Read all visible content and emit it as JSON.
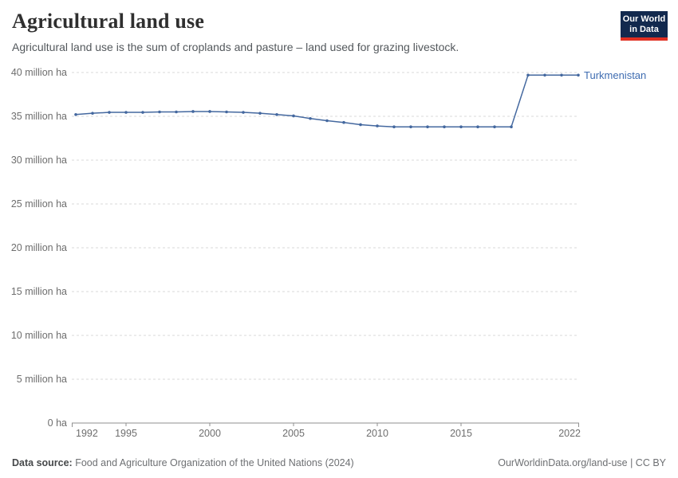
{
  "header": {
    "title": "Agricultural land use",
    "subtitle": "Agricultural land use is the sum of croplands and pasture – land used for grazing livestock.",
    "logo": {
      "line1": "Our World",
      "line2": "in Data"
    }
  },
  "footer": {
    "source_label": "Data source:",
    "source_text": " Food and Agriculture Organization of the United Nations (2024)",
    "right_text": "OurWorldinData.org/land-use | CC BY"
  },
  "colors": {
    "line": "#44689f",
    "series_label": "#3e6cb1",
    "grid": "#dadada",
    "axis": "#8f8f8f",
    "tick_text": "#6e6e6e",
    "logo_bg": "#12294e",
    "logo_red": "#e02f21"
  },
  "chart_data": {
    "type": "line",
    "title": "Agricultural land use",
    "unit": "million ha",
    "xlabel": "",
    "ylabel": "",
    "xlim": [
      1992,
      2022
    ],
    "ylim": [
      0,
      40
    ],
    "grid": "horizontal-dashed",
    "legend_position": "end-of-line",
    "x_ticks": [
      1992,
      1995,
      2000,
      2005,
      2010,
      2015,
      2022
    ],
    "y_ticks": [
      {
        "v": 0,
        "label": "0 ha"
      },
      {
        "v": 5,
        "label": "5 million ha"
      },
      {
        "v": 10,
        "label": "10 million ha"
      },
      {
        "v": 15,
        "label": "15 million ha"
      },
      {
        "v": 20,
        "label": "20 million ha"
      },
      {
        "v": 25,
        "label": "25 million ha"
      },
      {
        "v": 30,
        "label": "30 million ha"
      },
      {
        "v": 35,
        "label": "35 million ha"
      },
      {
        "v": 40,
        "label": "40 million ha"
      }
    ],
    "series": [
      {
        "name": "Turkmenistan",
        "x": [
          1992,
          1993,
          1994,
          1995,
          1996,
          1997,
          1998,
          1999,
          2000,
          2001,
          2002,
          2003,
          2004,
          2005,
          2006,
          2007,
          2008,
          2009,
          2010,
          2011,
          2012,
          2013,
          2014,
          2015,
          2016,
          2017,
          2018,
          2019,
          2020,
          2021,
          2022
        ],
        "values": [
          35.2,
          35.35,
          35.45,
          35.45,
          35.45,
          35.5,
          35.5,
          35.55,
          35.55,
          35.5,
          35.45,
          35.35,
          35.2,
          35.05,
          34.75,
          34.5,
          34.3,
          34.05,
          33.9,
          33.8,
          33.8,
          33.8,
          33.8,
          33.8,
          33.8,
          33.8,
          33.8,
          39.7,
          39.7,
          39.7,
          39.7
        ]
      }
    ]
  }
}
